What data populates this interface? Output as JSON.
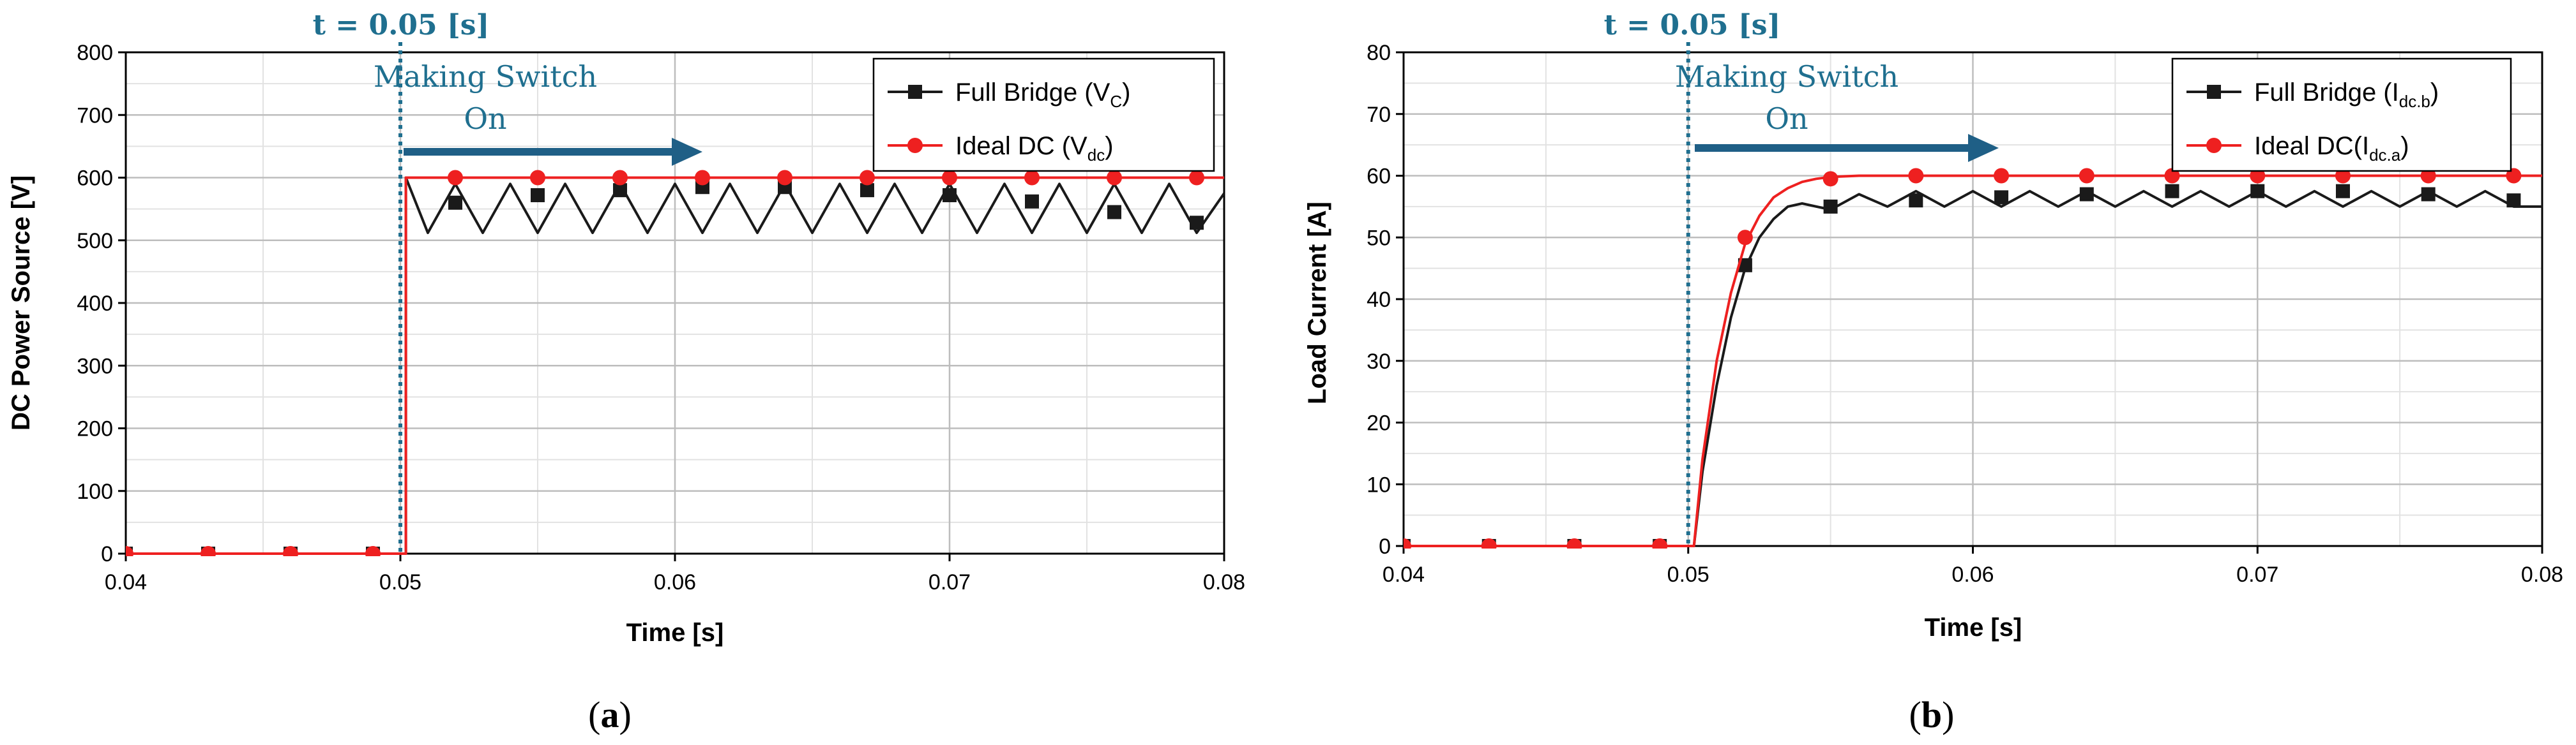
{
  "colors": {
    "series_full_bridge": "#1a1a1a",
    "series_ideal": "#ee2020",
    "event_line": "#1f6f8f",
    "event_text": "#1f6f8f",
    "arrow": "#1f5f86",
    "grid_major": "#bdbdbd",
    "grid_minor": "#e2e2e2"
  },
  "chart_data": [
    {
      "id": "a",
      "type": "line",
      "caption": "(a)",
      "caption_letter": "a",
      "xlabel": "Time [s]",
      "ylabel": "DC Power Source [V]",
      "xlim": [
        0.04,
        0.08
      ],
      "ylim": [
        0,
        800
      ],
      "x_ticks": [
        "0.04",
        "0.05",
        "0.06",
        "0.07",
        "0.08"
      ],
      "y_ticks": [
        "0",
        "100",
        "200",
        "300",
        "400",
        "500",
        "600",
        "700",
        "800"
      ],
      "grid": true,
      "legend_position": "top-right",
      "event": {
        "label": "t = 0.05 [s]",
        "x": 0.05
      },
      "annotation": {
        "line1": "Making Switch",
        "line2": "On"
      },
      "series": [
        {
          "name": "Full Bridge (V",
          "name_sub": "C",
          "name_suffix": ")",
          "marker": "square",
          "x": [
            0.04,
            0.043,
            0.046,
            0.049,
            0.0502,
            0.0502,
            0.051,
            0.052,
            0.053,
            0.054,
            0.055,
            0.056,
            0.057,
            0.058,
            0.059,
            0.06,
            0.061,
            0.062,
            0.063,
            0.064,
            0.065,
            0.066,
            0.067,
            0.068,
            0.069,
            0.07,
            0.071,
            0.072,
            0.073,
            0.074,
            0.075,
            0.076,
            0.077,
            0.078,
            0.079,
            0.08
          ],
          "y": [
            0,
            0,
            0,
            0,
            0,
            600,
            512,
            590,
            512,
            590,
            512,
            590,
            512,
            590,
            512,
            590,
            512,
            590,
            512,
            590,
            512,
            590,
            512,
            590,
            512,
            590,
            512,
            590,
            512,
            590,
            512,
            590,
            512,
            590,
            512,
            575
          ],
          "markers_x": [
            0.04,
            0.043,
            0.046,
            0.049,
            0.052,
            0.055,
            0.058,
            0.061,
            0.064,
            0.067,
            0.07,
            0.073,
            0.076,
            0.079
          ],
          "markers_y": [
            0,
            0,
            0,
            0,
            560,
            572,
            580,
            585,
            585,
            580,
            572,
            562,
            545,
            528
          ]
        },
        {
          "name": "Ideal DC (V",
          "name_sub": "dc",
          "name_suffix": ")",
          "marker": "circle",
          "x": [
            0.04,
            0.0502,
            0.0502,
            0.08
          ],
          "y": [
            0,
            0,
            600,
            600
          ],
          "markers_x": [
            0.04,
            0.043,
            0.046,
            0.049,
            0.052,
            0.055,
            0.058,
            0.061,
            0.064,
            0.067,
            0.07,
            0.073,
            0.076,
            0.079
          ],
          "markers_y": [
            0,
            0,
            0,
            0,
            600,
            600,
            600,
            600,
            600,
            600,
            600,
            600,
            600,
            600
          ]
        }
      ]
    },
    {
      "id": "b",
      "type": "line",
      "caption": "(b)",
      "caption_letter": "b",
      "xlabel": "Time [s]",
      "ylabel": "Load Current [A]",
      "xlim": [
        0.04,
        0.08
      ],
      "ylim": [
        0,
        80
      ],
      "x_ticks": [
        "0.04",
        "0.05",
        "0.06",
        "0.07",
        "0.08"
      ],
      "y_ticks": [
        "0",
        "10",
        "20",
        "30",
        "40",
        "50",
        "60",
        "70",
        "80"
      ],
      "grid": true,
      "legend_position": "top-right",
      "event": {
        "label": "t = 0.05 [s]",
        "x": 0.05
      },
      "annotation": {
        "line1": "Making Switch",
        "line2": "On"
      },
      "series": [
        {
          "name": "Full Bridge (I",
          "name_sub": "dc.b",
          "name_suffix": ")",
          "marker": "square",
          "x": [
            0.04,
            0.0502,
            0.0505,
            0.051,
            0.0515,
            0.052,
            0.0525,
            0.053,
            0.0535,
            0.054,
            0.055,
            0.056,
            0.057,
            0.058,
            0.059,
            0.06,
            0.061,
            0.062,
            0.063,
            0.064,
            0.065,
            0.066,
            0.067,
            0.068,
            0.069,
            0.07,
            0.071,
            0.072,
            0.073,
            0.074,
            0.075,
            0.076,
            0.077,
            0.078,
            0.079,
            0.08
          ],
          "y": [
            0,
            0,
            12,
            26,
            37,
            45,
            50,
            53,
            55,
            55.5,
            54.5,
            57,
            55,
            57.5,
            55,
            57.5,
            55,
            57.5,
            55,
            57.5,
            55,
            57.5,
            55,
            57.5,
            55,
            57.5,
            55,
            57.5,
            55,
            57.5,
            55,
            57.5,
            55,
            57.5,
            55,
            55
          ],
          "markers_x": [
            0.04,
            0.043,
            0.046,
            0.049,
            0.052,
            0.055,
            0.058,
            0.061,
            0.064,
            0.067,
            0.07,
            0.073,
            0.076,
            0.079
          ],
          "markers_y": [
            0,
            0,
            0,
            0,
            45.5,
            55,
            56,
            56.5,
            57,
            57.5,
            57.5,
            57.5,
            57,
            56
          ]
        },
        {
          "name": "Ideal DC(I",
          "name_sub": "dc.a",
          "name_suffix": ")",
          "marker": "circle",
          "x": [
            0.04,
            0.0502,
            0.0505,
            0.051,
            0.0515,
            0.052,
            0.0525,
            0.053,
            0.0535,
            0.054,
            0.0545,
            0.055,
            0.056,
            0.057,
            0.058,
            0.08
          ],
          "y": [
            0,
            0,
            14,
            30,
            41,
            49,
            53.5,
            56.5,
            58,
            59,
            59.5,
            59.8,
            60,
            60,
            60,
            60
          ],
          "markers_x": [
            0.04,
            0.043,
            0.046,
            0.049,
            0.052,
            0.055,
            0.058,
            0.061,
            0.064,
            0.067,
            0.07,
            0.073,
            0.076,
            0.079
          ],
          "markers_y": [
            0,
            0,
            0,
            0,
            50,
            59.5,
            60,
            60,
            60,
            60,
            60,
            60,
            60,
            60
          ]
        }
      ]
    }
  ]
}
